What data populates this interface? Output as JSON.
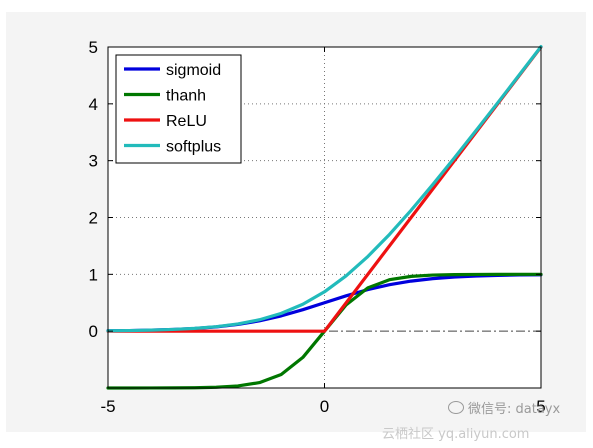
{
  "chart_data": {
    "type": "line",
    "title": "",
    "xlabel": "",
    "ylabel": "",
    "xlim": [
      -5,
      5
    ],
    "ylim": [
      -1,
      5
    ],
    "xticks": [
      -5,
      0,
      5
    ],
    "xtick_labels": [
      "-5",
      "0",
      "5"
    ],
    "yticks": [
      0,
      1,
      2,
      3,
      4,
      5
    ],
    "ytick_labels": [
      "0",
      "1",
      "2",
      "3",
      "4",
      "5"
    ],
    "grid": true,
    "legend": "top-left",
    "series": [
      {
        "name": "sigmoid",
        "color": "#0000dd",
        "x": [
          -5,
          -4.5,
          -4,
          -3.5,
          -3,
          -2.5,
          -2,
          -1.5,
          -1,
          -0.5,
          0,
          0.5,
          1,
          1.5,
          2,
          2.5,
          3,
          3.5,
          4,
          4.5,
          5
        ],
        "y": [
          0.007,
          0.011,
          0.018,
          0.029,
          0.047,
          0.076,
          0.119,
          0.182,
          0.269,
          0.378,
          0.5,
          0.622,
          0.731,
          0.818,
          0.881,
          0.924,
          0.953,
          0.971,
          0.982,
          0.989,
          0.993
        ]
      },
      {
        "name": "thanh",
        "color": "#007700",
        "x": [
          -5,
          -4.5,
          -4,
          -3.5,
          -3,
          -2.5,
          -2,
          -1.5,
          -1,
          -0.5,
          0,
          0.5,
          1,
          1.5,
          2,
          2.5,
          3,
          3.5,
          4,
          4.5,
          5
        ],
        "y": [
          -1.0,
          -1.0,
          -0.999,
          -0.998,
          -0.995,
          -0.987,
          -0.964,
          -0.905,
          -0.762,
          -0.462,
          0,
          0.462,
          0.762,
          0.905,
          0.964,
          0.987,
          0.995,
          0.998,
          0.999,
          1.0,
          1.0
        ]
      },
      {
        "name": "ReLU",
        "color": "#ee1111",
        "x": [
          -5,
          0,
          5
        ],
        "y": [
          0,
          0,
          5
        ]
      },
      {
        "name": "softplus",
        "color": "#22bbbb",
        "x": [
          -5,
          -4.5,
          -4,
          -3.5,
          -3,
          -2.5,
          -2,
          -1.5,
          -1,
          -0.5,
          0,
          0.5,
          1,
          1.5,
          2,
          2.5,
          3,
          3.5,
          4,
          4.5,
          5
        ],
        "y": [
          0.007,
          0.011,
          0.018,
          0.03,
          0.049,
          0.079,
          0.127,
          0.201,
          0.313,
          0.474,
          0.693,
          0.974,
          1.313,
          1.701,
          2.127,
          2.579,
          3.049,
          3.53,
          4.018,
          4.511,
          5.007
        ]
      }
    ]
  },
  "watermark": {
    "wechat_icon": "wechat-icon",
    "text": "微信号: datayx",
    "site": "云栖社区 yq.aliyun.com"
  }
}
